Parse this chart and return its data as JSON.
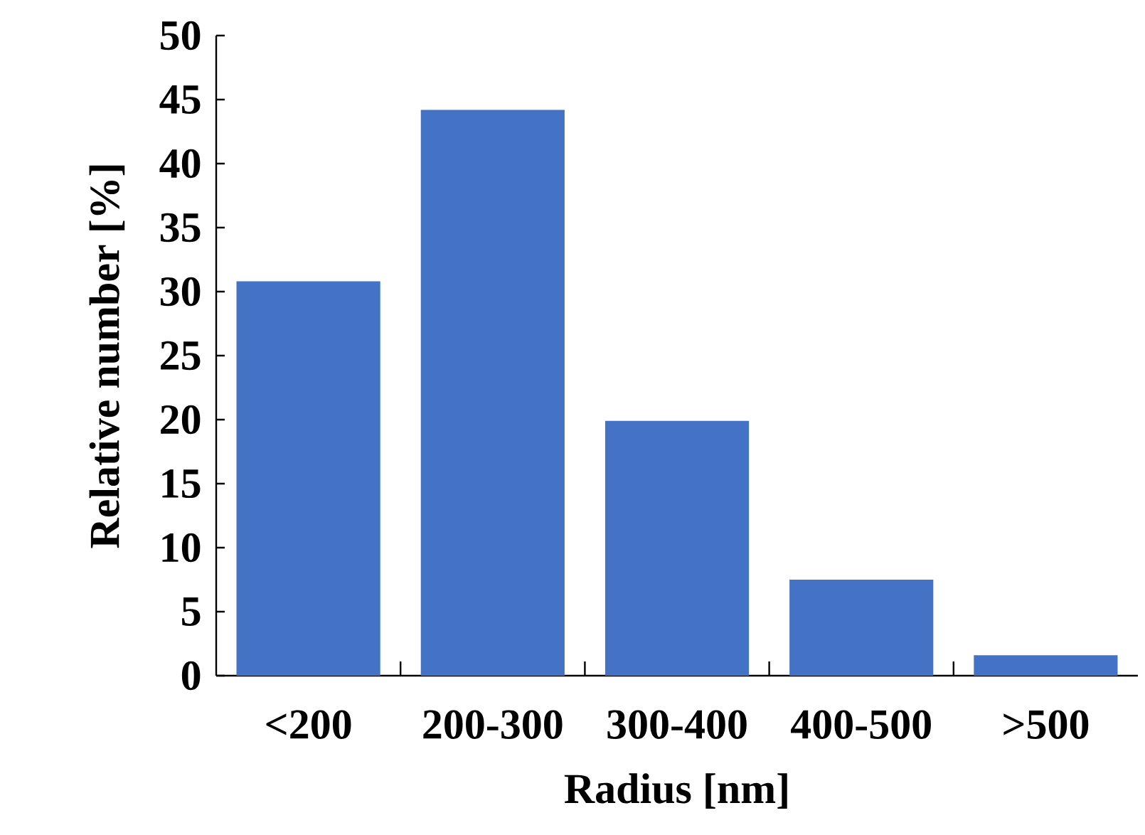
{
  "chart_data": {
    "type": "bar",
    "xlabel": "Radius [nm]",
    "ylabel": "Relative number [%]",
    "categories": [
      "<200",
      "200-300",
      "300-400",
      "400-500",
      ">500"
    ],
    "values": [
      30.8,
      44.2,
      19.9,
      7.5,
      1.6
    ],
    "color": "#4472c4",
    "ylim": [
      0,
      50
    ],
    "yticks": [
      0,
      5,
      10,
      15,
      20,
      25,
      30,
      35,
      40,
      45,
      50
    ],
    "grid": false
  }
}
